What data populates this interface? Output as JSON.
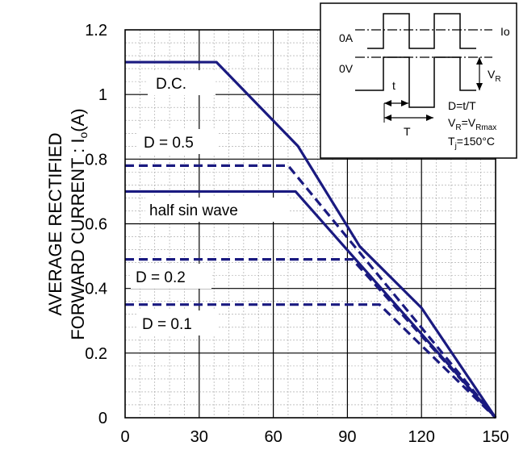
{
  "chart_data": {
    "type": "line",
    "ylabel_line1": "AVERAGE RECTIFIED",
    "ylabel_line2": "FORWARD CURRENT : I",
    "ylabel_sub": "o",
    "ylabel_unit": "(A)",
    "xlim": [
      0,
      150
    ],
    "ylim": [
      0,
      1.2
    ],
    "x_ticks": [
      "0",
      "30",
      "60",
      "90",
      "120",
      "150"
    ],
    "y_ticks": [
      "0",
      "0.2",
      "0.4",
      "0.6",
      "0.8",
      "1",
      "1.2"
    ],
    "grid": true,
    "series": [
      {
        "name": "D.C.",
        "style": "solid",
        "points": [
          [
            0,
            1.1
          ],
          [
            37,
            1.1
          ],
          [
            70,
            0.84
          ],
          [
            95,
            0.53
          ],
          [
            120,
            0.34
          ],
          [
            150,
            0
          ]
        ]
      },
      {
        "name": "D = 0.5",
        "style": "dashed",
        "points": [
          [
            0,
            0.78
          ],
          [
            66,
            0.78
          ],
          [
            150,
            0
          ]
        ]
      },
      {
        "name": "half sin wave",
        "style": "solid",
        "points": [
          [
            0,
            0.7
          ],
          [
            69,
            0.7
          ],
          [
            150,
            0
          ]
        ]
      },
      {
        "name": "D = 0.2",
        "style": "dashed",
        "points": [
          [
            0,
            0.49
          ],
          [
            92,
            0.49
          ],
          [
            150,
            0
          ]
        ]
      },
      {
        "name": "D = 0.1",
        "style": "dashed",
        "points": [
          [
            0,
            0.35
          ],
          [
            103,
            0.35
          ],
          [
            150,
            0
          ]
        ]
      }
    ],
    "annotations": {
      "dc": "D.C.",
      "d05": "D = 0.5",
      "halfsin": "half sin wave",
      "d02": "D = 0.2",
      "d01": "D = 0.1"
    },
    "inset": {
      "label_0A": "0A",
      "label_0V": "0V",
      "label_Io": "Io",
      "label_VR": "V",
      "label_VR_sub": "R",
      "label_t": "t",
      "label_T": "T",
      "eq1": "D=t/T",
      "eq2_a": "V",
      "eq2_a_sub": "R",
      "eq2_b": "=V",
      "eq2_b_sub": "Rmax",
      "eq3_a": "T",
      "eq3_a_sub": "j",
      "eq3_b": "=150°C"
    },
    "colors": {
      "line": "#1a1a80",
      "grid": "#a0a0a0",
      "frame": "#000000"
    }
  }
}
